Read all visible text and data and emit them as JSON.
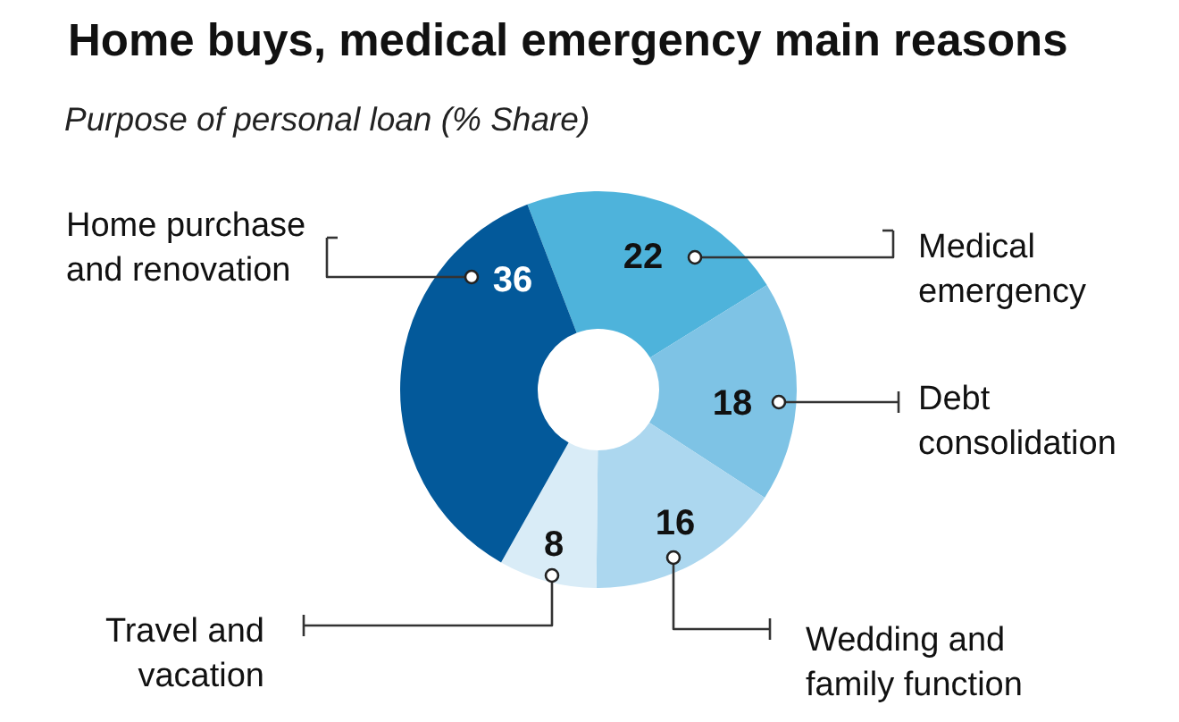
{
  "chart_data": {
    "type": "donut",
    "title": "Home buys, medical emergency main reasons",
    "subtitle": "Purpose of personal loan (% Share)",
    "categories": [
      "Medical emergency",
      "Debt consolidation",
      "Wedding and family function",
      "Travel and vacation",
      "Home purchase and renovation"
    ],
    "values": [
      22,
      18,
      16,
      8,
      36
    ],
    "colors": [
      "#4eb3db",
      "#7ec3e5",
      "#acd7ef",
      "#d9ecf7",
      "#03599a"
    ],
    "data_labels": true
  }
}
